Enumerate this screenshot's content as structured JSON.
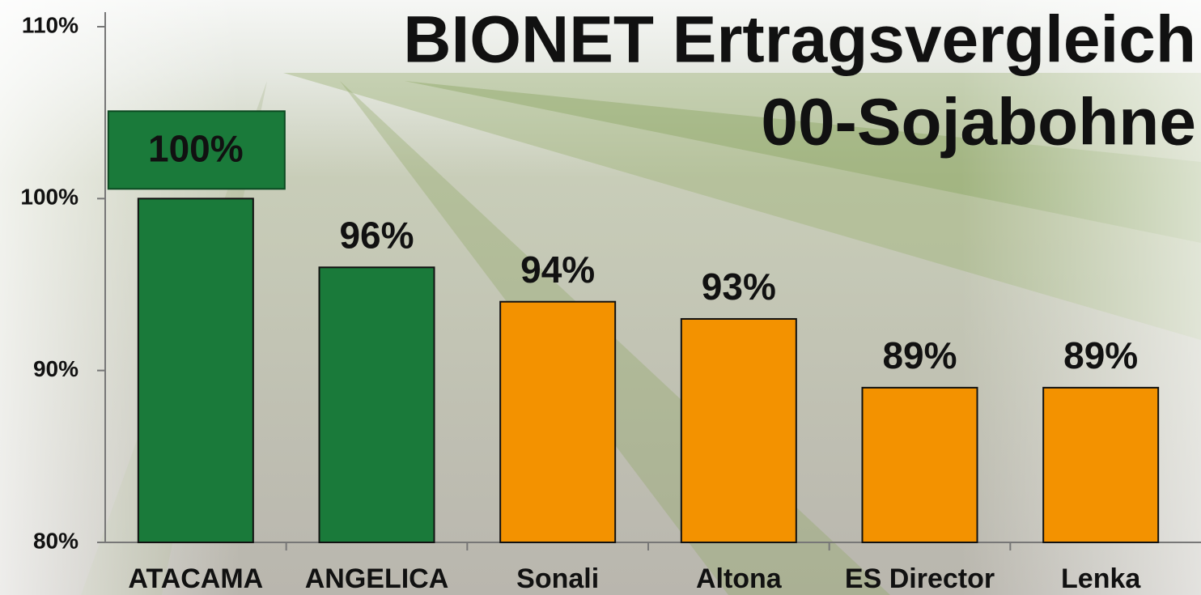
{
  "chart_data": {
    "type": "bar",
    "title": "BIONET Ertragsvergleich",
    "subtitle": "00-Sojabohne",
    "categories": [
      "ATACAMA",
      "ANGELICA",
      "Sonali",
      "Altona",
      "ES Director",
      "Lenka"
    ],
    "values": [
      100,
      96,
      94,
      93,
      89,
      89
    ],
    "value_labels": [
      "100%",
      "96%",
      "94%",
      "93%",
      "89%",
      "89%"
    ],
    "colors": [
      "#1a7a3a",
      "#1a7a3a",
      "#f39200",
      "#f39200",
      "#f39200",
      "#f39200"
    ],
    "ylim": [
      80,
      110
    ],
    "yticks": [
      {
        "value": 80,
        "label": "80%"
      },
      {
        "value": 90,
        "label": "90%"
      },
      {
        "value": 100,
        "label": "100%"
      },
      {
        "value": 110,
        "label": "110%"
      }
    ]
  }
}
